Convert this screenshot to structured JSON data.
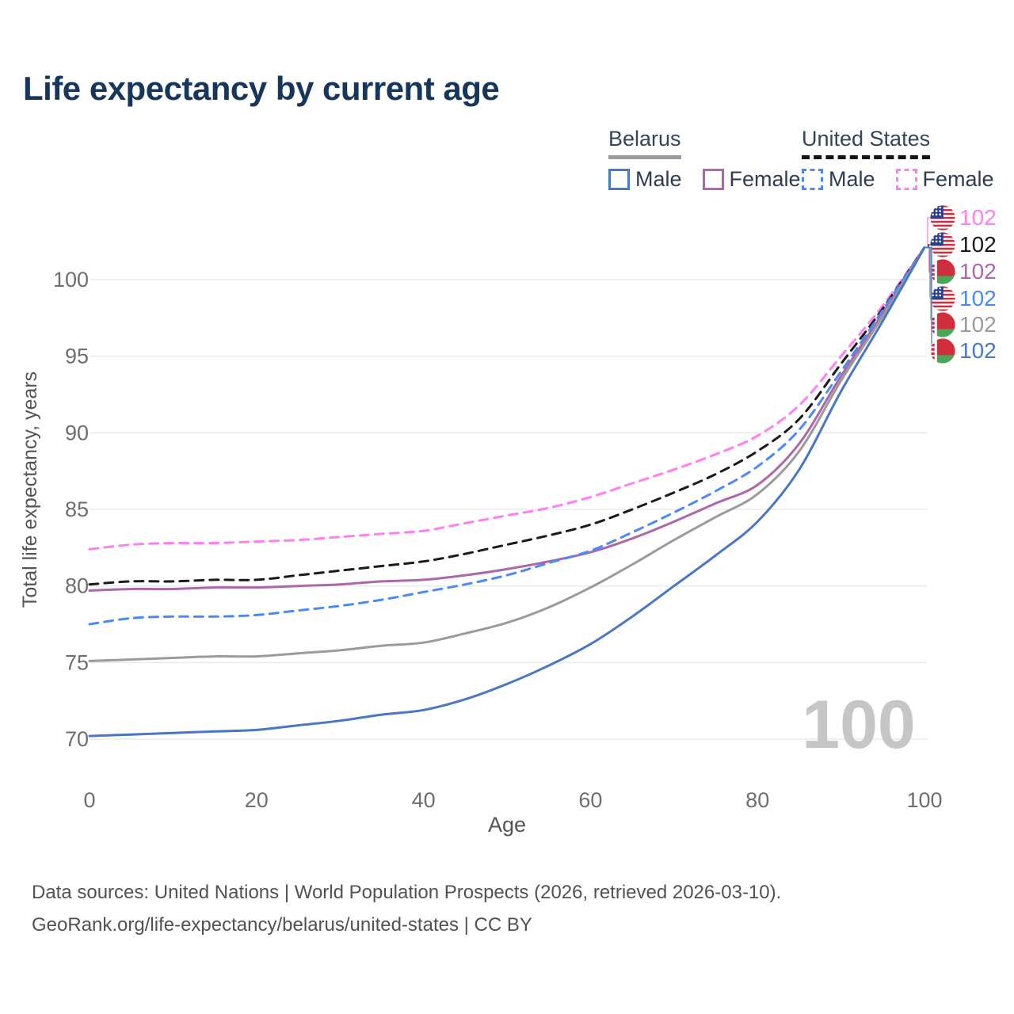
{
  "title": "Life expectancy by current age",
  "legend": {
    "groups": [
      {
        "name": "Belarus",
        "line_style": "solid",
        "line_color": "#9b9b9b",
        "items": [
          {
            "label": "Male",
            "box_style": "solid",
            "box_color": "#4a77c4"
          },
          {
            "label": "Female",
            "box_style": "solid",
            "box_color": "#ac68a8"
          }
        ]
      },
      {
        "name": "United States",
        "line_style": "dashed",
        "line_color": "#141414",
        "items": [
          {
            "label": "Male",
            "box_style": "dashed",
            "box_color": "#4b8af5"
          },
          {
            "label": "Female",
            "box_style": "dashed",
            "box_color": "#ff7ff0"
          }
        ]
      }
    ]
  },
  "chart_data": {
    "type": "line",
    "title": "Life expectancy by current age",
    "xlabel": "Age",
    "ylabel": "Total life expectancy, years",
    "xlim": [
      0,
      100
    ],
    "ylim": [
      68.5,
      103.5
    ],
    "x_ticks": [
      0,
      20,
      40,
      60,
      80,
      100
    ],
    "y_ticks": [
      70,
      75,
      80,
      85,
      90,
      95,
      100
    ],
    "grid": "horizontal",
    "legend_position": "top-right",
    "watermark": "100",
    "x": [
      0,
      5,
      10,
      15,
      20,
      25,
      30,
      35,
      40,
      45,
      50,
      55,
      60,
      65,
      70,
      75,
      80,
      85,
      90,
      95,
      100
    ],
    "series": [
      {
        "name": "United States — Female",
        "country": "United States",
        "sex": "Female",
        "flag": "us",
        "style": "dashed",
        "color": "#ff7ff0",
        "end_label": "102",
        "values": [
          82.4,
          82.7,
          82.8,
          82.8,
          82.9,
          83.0,
          83.2,
          83.4,
          83.6,
          84.1,
          84.6,
          85.1,
          85.8,
          86.7,
          87.6,
          88.6,
          89.8,
          91.8,
          95.0,
          98.3,
          102.1
        ]
      },
      {
        "name": "United States — Total",
        "country": "United States",
        "sex": "Both",
        "flag": "us",
        "style": "dashed",
        "color": "#1a1a1a",
        "end_label": "102",
        "values": [
          80.1,
          80.3,
          80.3,
          80.4,
          80.4,
          80.7,
          81.0,
          81.3,
          81.6,
          82.1,
          82.7,
          83.3,
          84.0,
          85.0,
          86.1,
          87.3,
          88.8,
          90.9,
          94.5,
          98.1,
          102.1
        ]
      },
      {
        "name": "Belarus — Female",
        "country": "Belarus",
        "sex": "Female",
        "flag": "by",
        "style": "solid",
        "color": "#ac68a8",
        "end_label": "102",
        "values": [
          79.7,
          79.8,
          79.8,
          79.9,
          79.9,
          80.0,
          80.1,
          80.3,
          80.4,
          80.7,
          81.1,
          81.6,
          82.2,
          83.1,
          84.2,
          85.4,
          86.6,
          89.3,
          93.7,
          97.8,
          102.1
        ]
      },
      {
        "name": "United States — Male",
        "country": "United States",
        "sex": "Male",
        "flag": "us",
        "style": "dashed",
        "color": "#4b8af5",
        "end_label": "102",
        "values": [
          77.5,
          77.9,
          78.0,
          78.0,
          78.1,
          78.4,
          78.7,
          79.1,
          79.6,
          80.1,
          80.7,
          81.5,
          82.3,
          83.5,
          84.8,
          86.2,
          87.8,
          90.2,
          94.0,
          98.0,
          102.1
        ]
      },
      {
        "name": "Belarus — Total",
        "country": "Belarus",
        "sex": "Both",
        "flag": "by",
        "style": "solid",
        "color": "#9b9b9b",
        "end_label": "102",
        "values": [
          75.1,
          75.2,
          75.3,
          75.4,
          75.4,
          75.6,
          75.8,
          76.1,
          76.3,
          76.9,
          77.6,
          78.6,
          79.9,
          81.4,
          83.0,
          84.5,
          86.0,
          88.8,
          93.4,
          97.6,
          102.1
        ]
      },
      {
        "name": "Belarus — Male",
        "country": "Belarus",
        "sex": "Male",
        "flag": "by",
        "style": "solid",
        "color": "#4a77c4",
        "end_label": "102",
        "values": [
          70.2,
          70.3,
          70.4,
          70.5,
          70.6,
          70.9,
          71.2,
          71.6,
          71.9,
          72.6,
          73.6,
          74.8,
          76.2,
          78.0,
          80.0,
          82.0,
          84.2,
          87.6,
          92.7,
          97.3,
          102.1
        ]
      }
    ]
  },
  "footer": {
    "line1": "Data sources: United Nations | World Population Prospects (2026, retrieved 2026-03-10).",
    "line2": "GeoRank.org/life-expectancy/belarus/united-states | CC BY"
  },
  "colors": {
    "title": "#17365c",
    "tick_label": "#6e6e6e",
    "axis_label": "#555555",
    "gridline": "#ebebeb",
    "watermark": "#c6c6c6",
    "footer": "#525252"
  }
}
